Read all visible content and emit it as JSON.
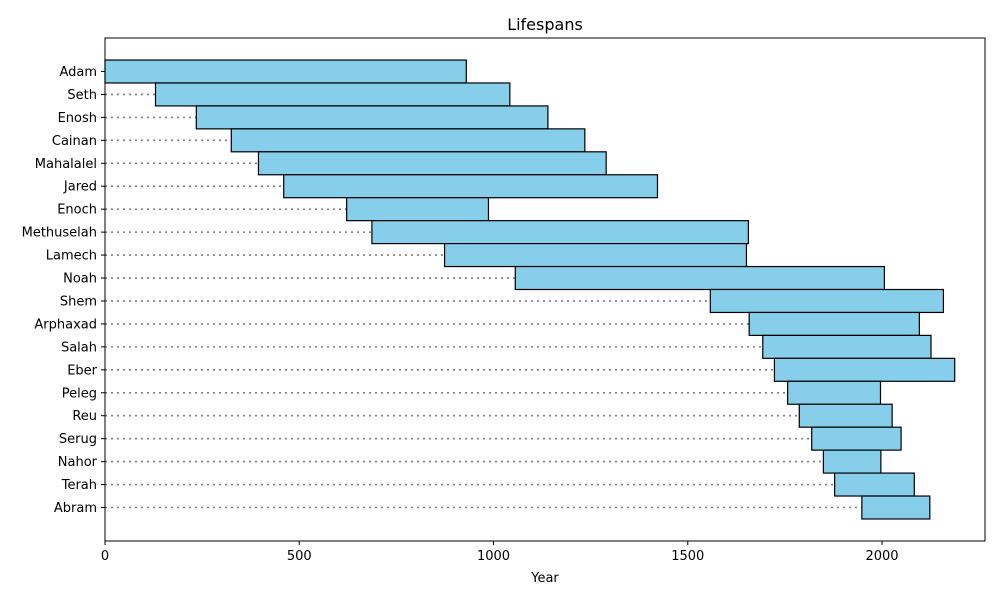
{
  "chart_data": {
    "type": "bar",
    "orientation": "horizontal",
    "title": "Lifespans",
    "xlabel": "Year",
    "ylabel": "",
    "xlim": [
      0,
      2265
    ],
    "xticks": [
      0,
      500,
      1000,
      1500,
      2000
    ],
    "grid": false,
    "legend": "none",
    "bar_color": "#87ceeb",
    "edge_color": "#000000",
    "guide_color": "#7f7f7f",
    "people": [
      {
        "name": "Adam",
        "start": 0,
        "end": 930
      },
      {
        "name": "Seth",
        "start": 130,
        "end": 1042
      },
      {
        "name": "Enosh",
        "start": 235,
        "end": 1140
      },
      {
        "name": "Cainan",
        "start": 325,
        "end": 1235
      },
      {
        "name": "Mahalalel",
        "start": 395,
        "end": 1290
      },
      {
        "name": "Jared",
        "start": 460,
        "end": 1422
      },
      {
        "name": "Enoch",
        "start": 622,
        "end": 987
      },
      {
        "name": "Methuselah",
        "start": 687,
        "end": 1656
      },
      {
        "name": "Lamech",
        "start": 874,
        "end": 1651
      },
      {
        "name": "Noah",
        "start": 1056,
        "end": 2006
      },
      {
        "name": "Shem",
        "start": 1558,
        "end": 2158
      },
      {
        "name": "Arphaxad",
        "start": 1658,
        "end": 2096
      },
      {
        "name": "Salah",
        "start": 1693,
        "end": 2126
      },
      {
        "name": "Eber",
        "start": 1723,
        "end": 2187
      },
      {
        "name": "Peleg",
        "start": 1757,
        "end": 1996
      },
      {
        "name": "Reu",
        "start": 1787,
        "end": 2026
      },
      {
        "name": "Serug",
        "start": 1819,
        "end": 2049
      },
      {
        "name": "Nahor",
        "start": 1849,
        "end": 1997
      },
      {
        "name": "Terah",
        "start": 1878,
        "end": 2083
      },
      {
        "name": "Abram",
        "start": 1948,
        "end": 2123
      }
    ]
  }
}
